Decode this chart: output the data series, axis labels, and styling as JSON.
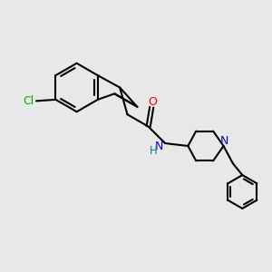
{
  "background_color": "#e8e8e8",
  "bond_color": "#000000",
  "N_color": "#0000cc",
  "O_color": "#ff0000",
  "Cl_color": "#00aa00",
  "line_width": 1.5,
  "figsize": [
    3.0,
    3.0
  ],
  "dpi": 100,
  "xlim": [
    0,
    10
  ],
  "ylim": [
    0,
    10
  ]
}
